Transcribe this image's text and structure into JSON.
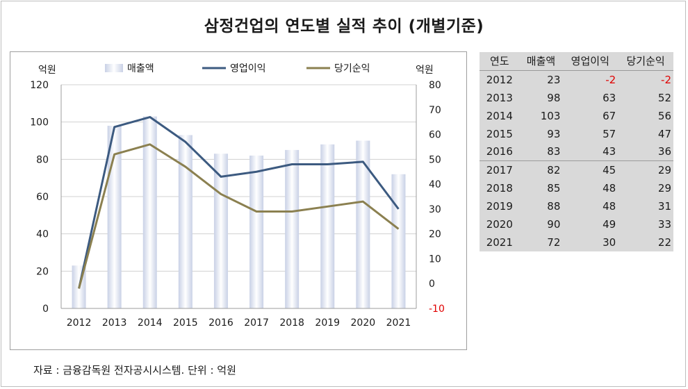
{
  "title": "삼정건업의 연도별 실적 추이 (개별기준)",
  "source": "자료 : 금융감독원 전자공시시스템. 단위 : 억원",
  "chart_data": {
    "type": "bar+line",
    "categories": [
      "2012",
      "2013",
      "2014",
      "2015",
      "2016",
      "2017",
      "2018",
      "2019",
      "2020",
      "2021"
    ],
    "left_axis": {
      "label": "억원",
      "min": 0,
      "max": 120,
      "ticks": [
        0,
        20,
        40,
        60,
        80,
        100,
        120
      ]
    },
    "right_axis": {
      "label": "억원",
      "min": -10,
      "max": 80,
      "ticks": [
        -10,
        0,
        10,
        20,
        30,
        40,
        50,
        60,
        70,
        80
      ]
    },
    "legend_position": "top",
    "series": [
      {
        "name": "매출액",
        "type": "bar",
        "axis": "left",
        "values": [
          23,
          98,
          103,
          93,
          83,
          82,
          85,
          88,
          90,
          72
        ]
      },
      {
        "name": "영업이익",
        "type": "line",
        "axis": "right",
        "color": "#3c5a80",
        "values": [
          -2,
          63,
          67,
          57,
          43,
          45,
          48,
          48,
          49,
          30
        ]
      },
      {
        "name": "당기순익",
        "type": "line",
        "axis": "right",
        "color": "#8b8050",
        "values": [
          -2,
          52,
          56,
          47,
          36,
          29,
          29,
          31,
          33,
          22
        ]
      }
    ]
  },
  "table": {
    "headers": [
      "연도",
      "매출액",
      "영업이익",
      "당기순익"
    ],
    "rows": [
      [
        "2012",
        "23",
        "-2",
        "-2"
      ],
      [
        "2013",
        "98",
        "63",
        "52"
      ],
      [
        "2014",
        "103",
        "67",
        "56"
      ],
      [
        "2015",
        "93",
        "57",
        "47"
      ],
      [
        "2016",
        "83",
        "43",
        "36"
      ],
      [
        "2017",
        "82",
        "45",
        "29"
      ],
      [
        "2018",
        "85",
        "48",
        "29"
      ],
      [
        "2019",
        "88",
        "48",
        "31"
      ],
      [
        "2020",
        "90",
        "49",
        "33"
      ],
      [
        "2021",
        "72",
        "30",
        "22"
      ]
    ]
  },
  "colors": {
    "negative": "#e00000",
    "table_bg": "#d9d9d9"
  }
}
